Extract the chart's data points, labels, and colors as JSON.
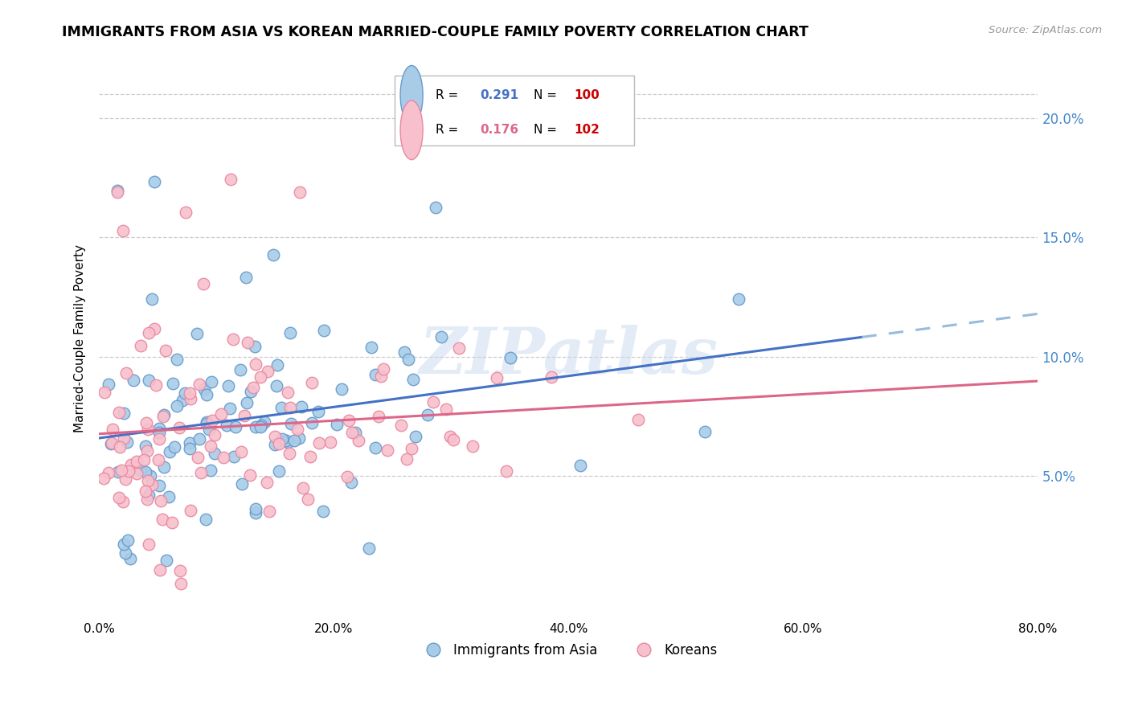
{
  "title": "IMMIGRANTS FROM ASIA VS KOREAN MARRIED-COUPLE FAMILY POVERTY CORRELATION CHART",
  "source": "Source: ZipAtlas.com",
  "ylabel": "Married-Couple Family Poverty",
  "ytick_labels": [
    "5.0%",
    "10.0%",
    "15.0%",
    "20.0%"
  ],
  "ytick_values": [
    0.05,
    0.1,
    0.15,
    0.2
  ],
  "xlim": [
    0.0,
    0.8
  ],
  "ylim": [
    -0.01,
    0.225
  ],
  "blue_color": "#a8cce8",
  "pink_color": "#f8c0cc",
  "blue_edge": "#6699cc",
  "pink_edge": "#e888a0",
  "trend_blue_solid": "#4472c4",
  "trend_blue_dash": "#99bbdd",
  "trend_pink": "#dd6688",
  "watermark": "ZIPatlas",
  "R_blue": 0.291,
  "N_blue": 100,
  "R_pink": 0.176,
  "N_pink": 102,
  "legend_R_blue": "0.291",
  "legend_N_blue": "100",
  "legend_R_pink": "0.176",
  "legend_N_pink": "102",
  "legend_R_color": "black",
  "legend_N_color": "#cc0000",
  "legend_val_blue": "#4472c4",
  "legend_val_pink": "#dd6688",
  "seed_blue": 42,
  "seed_pink": 99
}
